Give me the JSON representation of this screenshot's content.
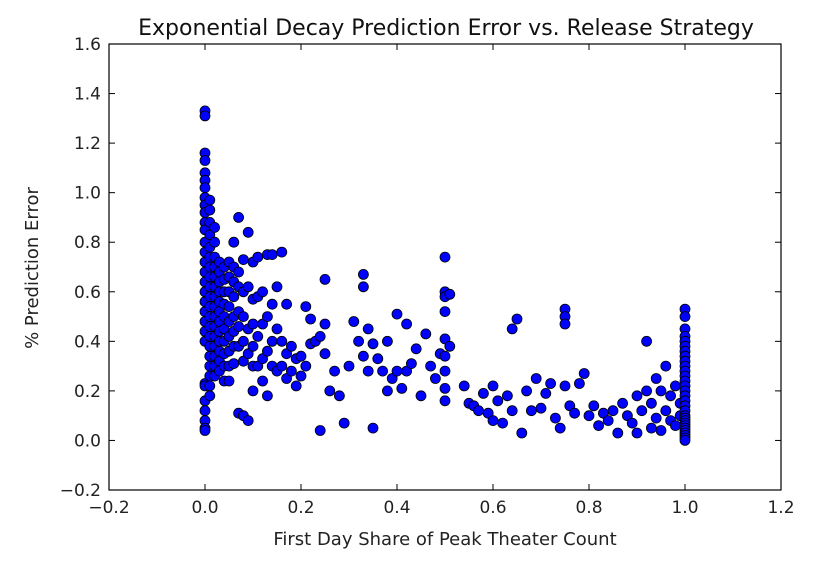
{
  "chart_data": {
    "type": "scatter",
    "title": "Exponential Decay Prediction Error vs. Release Strategy",
    "xlabel": "First Day Share of Peak Theater Count",
    "ylabel": "% Prediction Error",
    "xlim": [
      -0.2,
      1.2
    ],
    "ylim": [
      -0.2,
      1.6
    ],
    "xticks": [
      -0.2,
      0.0,
      0.2,
      0.4,
      0.6,
      0.8,
      1.0,
      1.2
    ],
    "yticks": [
      -0.2,
      0.0,
      0.2,
      0.4,
      0.6,
      0.8,
      1.0,
      1.2,
      1.4,
      1.6
    ],
    "xtick_labels": [
      "−0.2",
      "0.0",
      "0.2",
      "0.4",
      "0.6",
      "0.8",
      "1.0",
      "1.2"
    ],
    "ytick_labels": [
      "−0.2",
      "0.0",
      "0.2",
      "0.4",
      "0.6",
      "0.8",
      "1.0",
      "1.2",
      "1.4",
      "1.6"
    ],
    "grid": false,
    "legend": "none",
    "marker_color": "#0000ff",
    "marker_edge_color": "#000000",
    "series": [
      {
        "x": [
          0.0,
          0.0,
          0.0,
          0.0,
          0.0,
          0.0,
          0.0,
          0.0,
          0.0,
          0.0,
          0.0,
          0.0,
          0.0,
          0.0,
          0.0,
          0.0,
          0.0,
          0.0,
          0.0,
          0.0,
          0.0,
          0.0,
          0.0,
          0.0,
          0.0,
          0.0,
          0.0,
          0.0,
          0.0,
          0.0,
          0.01,
          0.01,
          0.01,
          0.01,
          0.01,
          0.01,
          0.01,
          0.01,
          0.01,
          0.01,
          0.01,
          0.01,
          0.01,
          0.01,
          0.01,
          0.01,
          0.01,
          0.01,
          0.01,
          0.01,
          0.02,
          0.02,
          0.02,
          0.02,
          0.02,
          0.02,
          0.02,
          0.02,
          0.02,
          0.02,
          0.02,
          0.02,
          0.02,
          0.02,
          0.02,
          0.03,
          0.03,
          0.03,
          0.03,
          0.03,
          0.03,
          0.03,
          0.03,
          0.03,
          0.03,
          0.03,
          0.03,
          0.04,
          0.04,
          0.04,
          0.04,
          0.04,
          0.04,
          0.04,
          0.04,
          0.04,
          0.04,
          0.05,
          0.05,
          0.05,
          0.05,
          0.05,
          0.05,
          0.05,
          0.05,
          0.05,
          0.06,
          0.06,
          0.06,
          0.06,
          0.06,
          0.06,
          0.06,
          0.06,
          0.07,
          0.07,
          0.07,
          0.07,
          0.07,
          0.07,
          0.07,
          0.08,
          0.08,
          0.08,
          0.08,
          0.08,
          0.08,
          0.09,
          0.09,
          0.09,
          0.09,
          0.09,
          0.1,
          0.1,
          0.1,
          0.1,
          0.1,
          0.1,
          0.11,
          0.11,
          0.11,
          0.11,
          0.12,
          0.12,
          0.12,
          0.12,
          0.13,
          0.13,
          0.13,
          0.13,
          0.14,
          0.14,
          0.14,
          0.14,
          0.15,
          0.15,
          0.15,
          0.16,
          0.16,
          0.16,
          0.17,
          0.17,
          0.17,
          0.18,
          0.18,
          0.19,
          0.19,
          0.2,
          0.2,
          0.21,
          0.21,
          0.22,
          0.22,
          0.23,
          0.24,
          0.24,
          0.25,
          0.25,
          0.25,
          0.26,
          0.27,
          0.28,
          0.29,
          0.3,
          0.31,
          0.32,
          0.33,
          0.33,
          0.33,
          0.34,
          0.34,
          0.35,
          0.35,
          0.36,
          0.37,
          0.38,
          0.38,
          0.39,
          0.4,
          0.4,
          0.41,
          0.42,
          0.42,
          0.43,
          0.44,
          0.45,
          0.46,
          0.47,
          0.48,
          0.49,
          0.5,
          0.5,
          0.5,
          0.5,
          0.5,
          0.5,
          0.5,
          0.5,
          0.5,
          0.51,
          0.51,
          0.54,
          0.55,
          0.56,
          0.57,
          0.58,
          0.59,
          0.6,
          0.6,
          0.61,
          0.62,
          0.63,
          0.64,
          0.64,
          0.65,
          0.66,
          0.67,
          0.68,
          0.69,
          0.7,
          0.71,
          0.72,
          0.73,
          0.74,
          0.75,
          0.75,
          0.75,
          0.75,
          0.76,
          0.77,
          0.78,
          0.79,
          0.8,
          0.81,
          0.82,
          0.83,
          0.84,
          0.85,
          0.86,
          0.87,
          0.88,
          0.89,
          0.9,
          0.9,
          0.91,
          0.92,
          0.92,
          0.93,
          0.93,
          0.94,
          0.94,
          0.95,
          0.95,
          0.96,
          0.96,
          0.97,
          0.97,
          0.98,
          0.98,
          0.99,
          0.99,
          1.0,
          1.0,
          1.0,
          1.0,
          1.0,
          1.0,
          1.0,
          1.0,
          1.0,
          1.0,
          1.0,
          1.0,
          1.0,
          1.0,
          1.0,
          1.0,
          1.0,
          1.0,
          1.0,
          1.0,
          1.0,
          1.0,
          1.0,
          1.0,
          1.0,
          1.0,
          1.0,
          1.0,
          1.0,
          1.0
        ],
        "y": [
          1.33,
          1.31,
          1.16,
          1.13,
          1.08,
          1.05,
          1.02,
          0.98,
          0.95,
          0.92,
          0.88,
          0.85,
          0.8,
          0.76,
          0.72,
          0.68,
          0.64,
          0.6,
          0.56,
          0.52,
          0.48,
          0.44,
          0.4,
          0.23,
          0.22,
          0.16,
          0.12,
          0.08,
          0.05,
          0.04,
          0.97,
          0.93,
          0.88,
          0.83,
          0.78,
          0.74,
          0.7,
          0.66,
          0.62,
          0.58,
          0.54,
          0.5,
          0.46,
          0.42,
          0.38,
          0.34,
          0.3,
          0.26,
          0.22,
          0.18,
          0.86,
          0.8,
          0.74,
          0.7,
          0.66,
          0.62,
          0.58,
          0.54,
          0.5,
          0.46,
          0.42,
          0.38,
          0.34,
          0.3,
          0.26,
          0.72,
          0.68,
          0.64,
          0.6,
          0.56,
          0.52,
          0.48,
          0.44,
          0.4,
          0.36,
          0.32,
          0.28,
          0.7,
          0.65,
          0.6,
          0.55,
          0.5,
          0.45,
          0.4,
          0.35,
          0.3,
          0.24,
          0.72,
          0.66,
          0.6,
          0.54,
          0.48,
          0.42,
          0.36,
          0.3,
          0.24,
          0.8,
          0.7,
          0.64,
          0.58,
          0.5,
          0.44,
          0.38,
          0.31,
          0.9,
          0.68,
          0.62,
          0.52,
          0.46,
          0.38,
          0.11,
          0.73,
          0.6,
          0.5,
          0.4,
          0.32,
          0.1,
          0.84,
          0.62,
          0.45,
          0.35,
          0.08,
          0.72,
          0.57,
          0.47,
          0.38,
          0.3,
          0.2,
          0.74,
          0.58,
          0.42,
          0.3,
          0.6,
          0.47,
          0.33,
          0.24,
          0.75,
          0.5,
          0.36,
          0.18,
          0.75,
          0.55,
          0.4,
          0.3,
          0.62,
          0.45,
          0.28,
          0.76,
          0.4,
          0.3,
          0.55,
          0.35,
          0.25,
          0.38,
          0.28,
          0.33,
          0.22,
          0.34,
          0.26,
          0.54,
          0.3,
          0.49,
          0.39,
          0.4,
          0.42,
          0.04,
          0.65,
          0.47,
          0.35,
          0.2,
          0.28,
          0.18,
          0.07,
          0.3,
          0.48,
          0.4,
          0.62,
          0.67,
          0.34,
          0.45,
          0.28,
          0.39,
          0.05,
          0.33,
          0.28,
          0.4,
          0.2,
          0.25,
          0.51,
          0.28,
          0.21,
          0.47,
          0.28,
          0.31,
          0.37,
          0.18,
          0.43,
          0.3,
          0.25,
          0.35,
          0.74,
          0.6,
          0.58,
          0.52,
          0.41,
          0.34,
          0.28,
          0.21,
          0.16,
          0.38,
          0.59,
          0.22,
          0.15,
          0.14,
          0.12,
          0.19,
          0.11,
          0.22,
          0.08,
          0.16,
          0.07,
          0.18,
          0.45,
          0.12,
          0.49,
          0.03,
          0.2,
          0.12,
          0.25,
          0.13,
          0.19,
          0.23,
          0.09,
          0.05,
          0.53,
          0.5,
          0.47,
          0.22,
          0.14,
          0.11,
          0.23,
          0.27,
          0.1,
          0.14,
          0.06,
          0.11,
          0.08,
          0.12,
          0.03,
          0.15,
          0.1,
          0.07,
          0.18,
          0.03,
          0.12,
          0.4,
          0.2,
          0.05,
          0.15,
          0.25,
          0.09,
          0.2,
          0.04,
          0.12,
          0.3,
          0.08,
          0.18,
          0.06,
          0.22,
          0.15,
          0.1,
          0.53,
          0.5,
          0.45,
          0.42,
          0.4,
          0.38,
          0.36,
          0.34,
          0.32,
          0.3,
          0.28,
          0.26,
          0.24,
          0.22,
          0.2,
          0.18,
          0.16,
          0.14,
          0.12,
          0.1,
          0.09,
          0.08,
          0.07,
          0.06,
          0.05,
          0.04,
          0.03,
          0.02,
          0.01,
          0.0
        ]
      }
    ]
  }
}
